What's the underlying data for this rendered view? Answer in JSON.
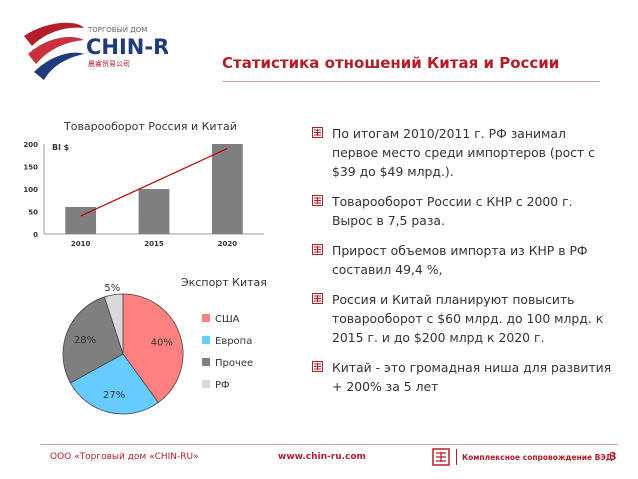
{
  "brand": {
    "top_label": "ТОРГОВЫЙ ДОМ",
    "name": "CHIN-RU",
    "chinese": "晨睿贸易公司"
  },
  "slide": {
    "title": "Статистика отношений Китая и России"
  },
  "colors": {
    "accent": "#b41e2a",
    "bar": "#7f7f7f",
    "trend": "#c00000",
    "usa": "#ff8080",
    "europe": "#66ccff",
    "other": "#7f7f7f",
    "rf": "#d9d9d9"
  },
  "chart_data": [
    {
      "type": "bar",
      "title": "Товарооборот Россия и Китай",
      "ylabel": "Bl $",
      "categories": [
        "2010",
        "2015",
        "2020"
      ],
      "values": [
        60,
        100,
        200
      ],
      "y_ticks": [
        "0",
        "50",
        "100",
        "150",
        "200"
      ],
      "ylim": [
        0,
        200
      ],
      "trendline": true,
      "grid": false
    },
    {
      "type": "pie",
      "title": "Экспорт Китая",
      "labels": [
        "США",
        "Европа",
        "Прочее",
        "РФ"
      ],
      "values": [
        40,
        27,
        28,
        5
      ],
      "value_labels": [
        "40%",
        "27%",
        "28%",
        "5%"
      ],
      "legend": "right"
    }
  ],
  "bullets": [
    "По итогам 2010/2011 г. РФ занимал первое место среди импортеров (рост с $39 до $49 млрд.).",
    "Товарооборот России с КНР с 2000 г. Вырос в 7,5 раза.",
    "Прирост объемов импорта из КНР в РФ составил 49,4 %,",
    "Россия и Китай планируют повысить товарооборот с $60 млрд. до 100 млрд. к 2015 г. и до $200 млрд к 2020 г.",
    "Китай - это громадная ниша для развития + 200% за 5 лет"
  ],
  "footer": {
    "company": "ООО «Торговый дом «CHIN-RU»",
    "website": "www.chin-ru.com",
    "tagline": "Комплексное сопровождение ВЭД",
    "page": "3"
  }
}
